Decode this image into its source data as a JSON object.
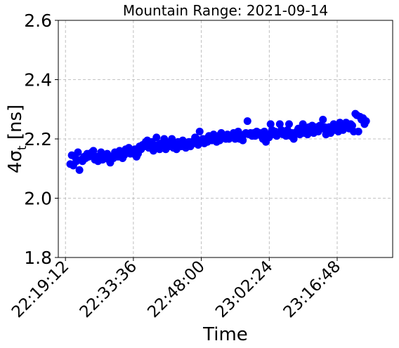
{
  "chart_data": {
    "type": "scatter",
    "title": "Mountain Range: 2021-09-14",
    "xlabel": "Time",
    "ylabel": "4σ_t [ns]",
    "ylabel_main": "4σ",
    "ylabel_sub": "t",
    "ylabel_unit": " [ns]",
    "ylim": [
      1.8,
      2.6
    ],
    "xlim": [
      "22:17:41",
      "23:28:34"
    ],
    "x_ticks": [
      "22:19:12",
      "22:33:36",
      "22:48:00",
      "23:02:24",
      "23:16:48"
    ],
    "y_ticks": [
      "1.8",
      "2.0",
      "2.2",
      "2.4",
      "2.6"
    ],
    "grid": true,
    "marker_color": "#0000ff",
    "series": [
      {
        "points": [
          [
            "22:20:13",
            2.115
          ],
          [
            "22:20:32",
            2.145
          ],
          [
            "22:20:52",
            2.11
          ],
          [
            "22:21:11",
            2.14
          ],
          [
            "22:21:31",
            2.125
          ],
          [
            "22:21:51",
            2.155
          ],
          [
            "22:22:10",
            2.095
          ],
          [
            "22:22:30",
            2.13
          ],
          [
            "22:22:49",
            2.125
          ],
          [
            "22:23:09",
            2.14
          ],
          [
            "22:23:29",
            2.135
          ],
          [
            "22:23:48",
            2.15
          ],
          [
            "22:24:08",
            2.14
          ],
          [
            "22:24:28",
            2.145
          ],
          [
            "22:24:47",
            2.155
          ],
          [
            "22:25:07",
            2.16
          ],
          [
            "22:25:26",
            2.13
          ],
          [
            "22:25:46",
            2.14
          ],
          [
            "22:26:06",
            2.125
          ],
          [
            "22:26:25",
            2.135
          ],
          [
            "22:26:45",
            2.155
          ],
          [
            "22:27:04",
            2.13
          ],
          [
            "22:27:24",
            2.145
          ],
          [
            "22:27:44",
            2.14
          ],
          [
            "22:28:03",
            2.15
          ],
          [
            "22:28:23",
            2.13
          ],
          [
            "22:28:42",
            2.12
          ],
          [
            "22:29:02",
            2.14
          ],
          [
            "22:29:22",
            2.135
          ],
          [
            "22:29:41",
            2.155
          ],
          [
            "22:30:01",
            2.15
          ],
          [
            "22:30:20",
            2.14
          ],
          [
            "22:30:40",
            2.16
          ],
          [
            "22:31:00",
            2.155
          ],
          [
            "22:31:19",
            2.135
          ],
          [
            "22:31:39",
            2.145
          ],
          [
            "22:31:58",
            2.165
          ],
          [
            "22:32:18",
            2.155
          ],
          [
            "22:32:38",
            2.17
          ],
          [
            "22:32:57",
            2.15
          ],
          [
            "22:33:17",
            2.16
          ],
          [
            "22:33:36",
            2.15
          ],
          [
            "22:33:56",
            2.165
          ],
          [
            "22:34:16",
            2.14
          ],
          [
            "22:34:35",
            2.15
          ],
          [
            "22:34:55",
            2.175
          ],
          [
            "22:35:14",
            2.165
          ],
          [
            "22:35:34",
            2.18
          ],
          [
            "22:35:54",
            2.175
          ],
          [
            "22:36:13",
            2.19
          ],
          [
            "22:36:33",
            2.195
          ],
          [
            "22:36:52",
            2.17
          ],
          [
            "22:37:12",
            2.185
          ],
          [
            "22:37:32",
            2.19
          ],
          [
            "22:37:51",
            2.16
          ],
          [
            "22:38:11",
            2.175
          ],
          [
            "22:38:30",
            2.205
          ],
          [
            "22:38:50",
            2.18
          ],
          [
            "22:39:10",
            2.165
          ],
          [
            "22:39:29",
            2.185
          ],
          [
            "22:39:49",
            2.17
          ],
          [
            "22:40:08",
            2.2
          ],
          [
            "22:40:28",
            2.165
          ],
          [
            "22:40:48",
            2.185
          ],
          [
            "22:41:07",
            2.175
          ],
          [
            "22:41:27",
            2.19
          ],
          [
            "22:41:46",
            2.2
          ],
          [
            "22:42:06",
            2.17
          ],
          [
            "22:42:26",
            2.185
          ],
          [
            "22:42:45",
            2.165
          ],
          [
            "22:43:05",
            2.19
          ],
          [
            "22:43:24",
            2.18
          ],
          [
            "22:43:44",
            2.175
          ],
          [
            "22:44:04",
            2.195
          ],
          [
            "22:44:23",
            2.185
          ],
          [
            "22:44:43",
            2.17
          ],
          [
            "22:45:02",
            2.18
          ],
          [
            "22:45:22",
            2.19
          ],
          [
            "22:45:42",
            2.175
          ],
          [
            "22:46:01",
            2.19
          ],
          [
            "22:46:21",
            2.185
          ],
          [
            "22:46:40",
            2.205
          ],
          [
            "22:47:00",
            2.2
          ],
          [
            "22:47:20",
            2.18
          ],
          [
            "22:47:39",
            2.225
          ],
          [
            "22:47:59",
            2.195
          ],
          [
            "22:48:18",
            2.2
          ],
          [
            "22:48:38",
            2.185
          ],
          [
            "22:48:58",
            2.2
          ],
          [
            "22:49:17",
            2.19
          ],
          [
            "22:49:37",
            2.21
          ],
          [
            "22:49:56",
            2.2
          ],
          [
            "22:50:16",
            2.195
          ],
          [
            "22:50:36",
            2.215
          ],
          [
            "22:50:55",
            2.205
          ],
          [
            "22:51:15",
            2.19
          ],
          [
            "22:51:34",
            2.21
          ],
          [
            "22:51:54",
            2.195
          ],
          [
            "22:52:14",
            2.22
          ],
          [
            "22:52:33",
            2.205
          ],
          [
            "22:52:53",
            2.21
          ],
          [
            "22:53:12",
            2.2
          ],
          [
            "22:53:32",
            2.215
          ],
          [
            "22:53:52",
            2.2
          ],
          [
            "22:54:11",
            2.205
          ],
          [
            "22:54:31",
            2.21
          ],
          [
            "22:54:50",
            2.22
          ],
          [
            "22:55:10",
            2.2
          ],
          [
            "22:55:30",
            2.215
          ],
          [
            "22:55:49",
            2.225
          ],
          [
            "22:56:09",
            2.2
          ],
          [
            "22:56:28",
            2.21
          ],
          [
            "22:56:48",
            2.195
          ],
          [
            "22:57:08",
            2.215
          ],
          [
            "22:57:27",
            2.22
          ],
          [
            "22:57:47",
            2.26
          ],
          [
            "22:58:06",
            2.215
          ],
          [
            "22:58:26",
            2.22
          ],
          [
            "22:58:46",
            2.21
          ],
          [
            "22:59:05",
            2.22
          ],
          [
            "22:59:25",
            2.21
          ],
          [
            "22:59:44",
            2.225
          ],
          [
            "23:00:04",
            2.215
          ],
          [
            "23:00:24",
            2.22
          ],
          [
            "23:00:43",
            2.21
          ],
          [
            "23:01:03",
            2.2
          ],
          [
            "23:01:22",
            2.225
          ],
          [
            "23:01:42",
            2.19
          ],
          [
            "23:02:02",
            2.215
          ],
          [
            "23:02:21",
            2.205
          ],
          [
            "23:02:41",
            2.25
          ],
          [
            "23:03:00",
            2.23
          ],
          [
            "23:03:20",
            2.215
          ],
          [
            "23:03:40",
            2.225
          ],
          [
            "23:03:59",
            2.21
          ],
          [
            "23:04:19",
            2.22
          ],
          [
            "23:04:38",
            2.25
          ],
          [
            "23:04:58",
            2.23
          ],
          [
            "23:05:18",
            2.215
          ],
          [
            "23:05:37",
            2.225
          ],
          [
            "23:05:57",
            2.21
          ],
          [
            "23:06:16",
            2.23
          ],
          [
            "23:06:36",
            2.25
          ],
          [
            "23:06:56",
            2.21
          ],
          [
            "23:07:15",
            2.22
          ],
          [
            "23:07:35",
            2.2
          ],
          [
            "23:07:54",
            2.215
          ],
          [
            "23:08:14",
            2.225
          ],
          [
            "23:08:34",
            2.235
          ],
          [
            "23:08:53",
            2.215
          ],
          [
            "23:09:13",
            2.225
          ],
          [
            "23:09:32",
            2.25
          ],
          [
            "23:09:52",
            2.22
          ],
          [
            "23:10:12",
            2.235
          ],
          [
            "23:10:31",
            2.215
          ],
          [
            "23:10:51",
            2.24
          ],
          [
            "23:11:10",
            2.23
          ],
          [
            "23:11:30",
            2.245
          ],
          [
            "23:11:50",
            2.22
          ],
          [
            "23:12:09",
            2.23
          ],
          [
            "23:12:29",
            2.24
          ],
          [
            "23:12:48",
            2.225
          ],
          [
            "23:13:08",
            2.245
          ],
          [
            "23:13:28",
            2.235
          ],
          [
            "23:13:47",
            2.265
          ],
          [
            "23:14:07",
            2.24
          ],
          [
            "23:14:26",
            2.215
          ],
          [
            "23:14:46",
            2.23
          ],
          [
            "23:15:06",
            2.24
          ],
          [
            "23:15:25",
            2.22
          ],
          [
            "23:15:45",
            2.235
          ],
          [
            "23:16:04",
            2.25
          ],
          [
            "23:16:24",
            2.23
          ],
          [
            "23:16:44",
            2.245
          ],
          [
            "23:17:03",
            2.225
          ],
          [
            "23:17:23",
            2.255
          ],
          [
            "23:17:42",
            2.24
          ],
          [
            "23:18:02",
            2.23
          ],
          [
            "23:18:22",
            2.245
          ],
          [
            "23:18:41",
            2.255
          ],
          [
            "23:19:01",
            2.24
          ],
          [
            "23:19:20",
            2.235
          ],
          [
            "23:19:40",
            2.25
          ],
          [
            "23:20:00",
            2.245
          ],
          [
            "23:20:19",
            2.225
          ],
          [
            "23:20:39",
            2.285
          ],
          [
            "23:20:58",
            2.28
          ],
          [
            "23:21:18",
            2.225
          ],
          [
            "23:21:38",
            2.275
          ],
          [
            "23:21:57",
            2.265
          ],
          [
            "23:22:17",
            2.27
          ],
          [
            "23:22:36",
            2.25
          ],
          [
            "23:22:56",
            2.26
          ]
        ]
      }
    ]
  }
}
